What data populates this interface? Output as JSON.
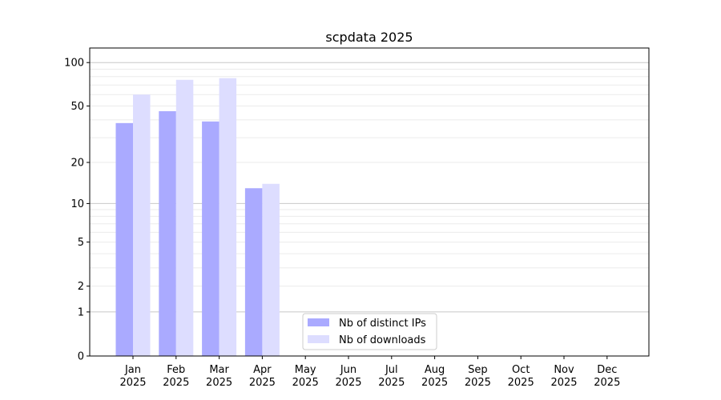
{
  "chart_data": {
    "type": "bar",
    "title": "scpdata 2025",
    "xlabel": "",
    "ylabel": "",
    "yscale": "log(1+y)",
    "ylim": [
      0,
      115
    ],
    "yticks": [
      0,
      1,
      2,
      5,
      10,
      20,
      50,
      100
    ],
    "ytick_labels": [
      "0",
      "1",
      "2",
      "5",
      "10",
      "20",
      "50",
      "100"
    ],
    "grid": true,
    "legend_position": "lower-center",
    "categories": [
      "Jan\n2025",
      "Feb\n2025",
      "Mar\n2025",
      "Apr\n2025",
      "May\n2025",
      "Jun\n2025",
      "Jul\n2025",
      "Aug\n2025",
      "Sep\n2025",
      "Oct\n2025",
      "Nov\n2025",
      "Dec\n2025"
    ],
    "series": [
      {
        "name": "Nb of distinct IPs",
        "color": "#aaaaff",
        "values": [
          38,
          46,
          39,
          13,
          0,
          0,
          0,
          0,
          0,
          0,
          0,
          0
        ]
      },
      {
        "name": "Nb of downloads",
        "color": "#ddddff",
        "values": [
          60,
          76,
          78,
          14,
          0,
          0,
          0,
          0,
          0,
          0,
          0,
          0
        ]
      }
    ]
  }
}
